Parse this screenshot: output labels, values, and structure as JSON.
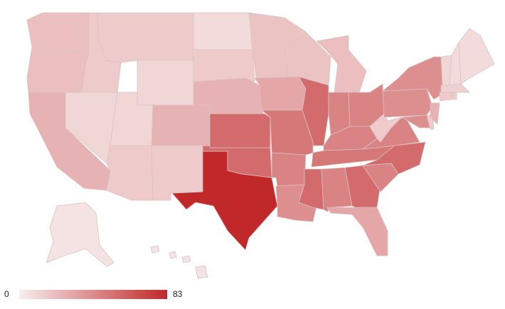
{
  "chart_data": {
    "type": "choropleth",
    "values": [
      20,
      20,
      25,
      15,
      10,
      15,
      10,
      10,
      15,
      25,
      15,
      83,
      55,
      55,
      8,
      15,
      25,
      18,
      30,
      50,
      45,
      40,
      18,
      55,
      20,
      45,
      45,
      45,
      50,
      55,
      45,
      55,
      30,
      45,
      55,
      45,
      15,
      40,
      40,
      40,
      15,
      25,
      15,
      15,
      12,
      10,
      8,
      8,
      5,
      5
    ],
    "colors": [
      "#f8eeee",
      "#c0282a"
    ],
    "range": [
      0,
      83
    ]
  }
}
